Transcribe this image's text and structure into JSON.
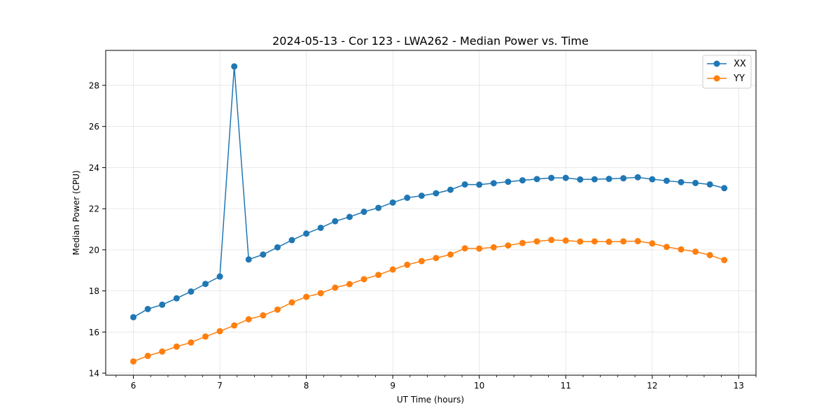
{
  "chart_data": {
    "type": "line",
    "title": "2024-05-13 - Cor 123 - LWA262 - Median Power vs. Time",
    "xlabel": "UT Time (hours)",
    "ylabel": "Median Power (CPU)",
    "xlim": [
      5.68,
      13.2
    ],
    "ylim": [
      13.9,
      29.7
    ],
    "xticks": [
      6,
      7,
      8,
      9,
      10,
      11,
      12,
      13
    ],
    "xtick_labels": [
      "6",
      "7",
      "8",
      "9",
      "10",
      "11",
      "12",
      "13"
    ],
    "yticks": [
      14,
      16,
      18,
      20,
      22,
      24,
      26,
      28
    ],
    "ytick_labels": [
      "14",
      "16",
      "18",
      "20",
      "22",
      "24",
      "26",
      "28"
    ],
    "grid": true,
    "legend_position": "top-right",
    "marker": "circle",
    "x": [
      6.0,
      6.1667,
      6.3333,
      6.5,
      6.6667,
      6.8333,
      7.0,
      7.1667,
      7.3333,
      7.5,
      7.6667,
      7.8333,
      8.0,
      8.1667,
      8.3333,
      8.5,
      8.6667,
      8.8333,
      9.0,
      9.1667,
      9.3333,
      9.5,
      9.6667,
      9.8333,
      10.0,
      10.1667,
      10.3333,
      10.5,
      10.6667,
      10.8333,
      11.0,
      11.1667,
      11.3333,
      11.5,
      11.6667,
      11.8333,
      12.0,
      12.1667,
      12.3333,
      12.5,
      12.6667,
      12.8333
    ],
    "series": [
      {
        "name": "XX",
        "color": "#1f77b4",
        "values": [
          16.72,
          17.12,
          17.33,
          17.64,
          17.97,
          18.34,
          18.7,
          28.92,
          19.53,
          19.77,
          20.12,
          20.47,
          20.79,
          21.07,
          21.39,
          21.6,
          21.85,
          22.04,
          22.3,
          22.53,
          22.63,
          22.75,
          22.92,
          23.18,
          23.17,
          23.24,
          23.31,
          23.38,
          23.44,
          23.5,
          23.5,
          23.42,
          23.43,
          23.45,
          23.48,
          23.53,
          23.43,
          23.36,
          23.29,
          23.25,
          23.18,
          23.0
        ]
      },
      {
        "name": "YY",
        "color": "#ff7f0e",
        "values": [
          14.57,
          14.84,
          15.05,
          15.29,
          15.49,
          15.78,
          16.04,
          16.32,
          16.62,
          16.81,
          17.09,
          17.44,
          17.71,
          17.89,
          18.16,
          18.33,
          18.57,
          18.78,
          19.04,
          19.27,
          19.45,
          19.6,
          19.77,
          20.07,
          20.06,
          20.12,
          20.21,
          20.33,
          20.41,
          20.48,
          20.45,
          20.4,
          20.41,
          20.39,
          20.41,
          20.42,
          20.31,
          20.14,
          20.02,
          19.91,
          19.74,
          19.5
        ]
      }
    ]
  }
}
